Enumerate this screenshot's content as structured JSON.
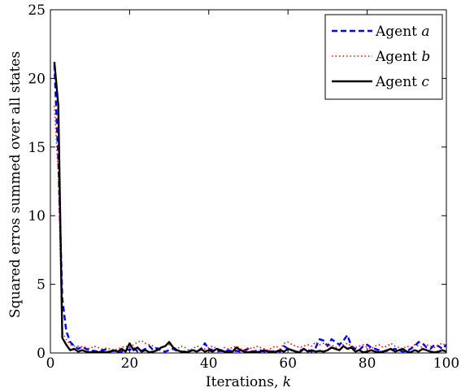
{
  "chart_data": {
    "type": "line",
    "xlabel_text": "Iterations, ",
    "xlabel_var": "k",
    "ylabel": "Squared erros summed over all states",
    "xlim": [
      0,
      100
    ],
    "ylim": [
      0,
      25
    ],
    "xticks": [
      0,
      20,
      40,
      60,
      80,
      100
    ],
    "yticks": [
      0,
      5,
      10,
      15,
      20,
      25
    ],
    "grid": false,
    "legend_position": "top-right",
    "x": [
      1,
      2,
      3,
      4,
      5,
      6,
      7,
      8,
      9,
      10,
      11,
      12,
      13,
      14,
      15,
      16,
      17,
      18,
      19,
      20,
      21,
      22,
      23,
      24,
      25,
      26,
      27,
      28,
      29,
      30,
      31,
      32,
      33,
      34,
      35,
      36,
      37,
      38,
      39,
      40,
      41,
      42,
      43,
      44,
      45,
      46,
      47,
      48,
      49,
      50,
      51,
      52,
      53,
      54,
      55,
      56,
      57,
      58,
      59,
      60,
      61,
      62,
      63,
      64,
      65,
      66,
      67,
      68,
      69,
      70,
      71,
      72,
      73,
      74,
      75,
      76,
      77,
      78,
      79,
      80,
      81,
      82,
      83,
      84,
      85,
      86,
      87,
      88,
      89,
      90,
      91,
      92,
      93,
      94,
      95,
      96,
      97,
      98,
      99,
      100
    ],
    "series": [
      {
        "name": "Agent a",
        "label_prefix": "Agent ",
        "label_var": "a",
        "color": "#0000ff",
        "dash": "7,4",
        "width": 2.4,
        "values": [
          21.0,
          14.0,
          4.0,
          1.6,
          0.8,
          0.5,
          0.3,
          0.45,
          0.3,
          0.2,
          0.15,
          0.1,
          0.2,
          0.25,
          0.1,
          0.15,
          0.1,
          0.1,
          0.3,
          0.2,
          0.4,
          0.1,
          0.15,
          0.3,
          0.5,
          0.2,
          0.35,
          0.15,
          0.1,
          0.2,
          0.3,
          0.15,
          0.1,
          0.1,
          0.15,
          0.2,
          0.1,
          0.25,
          0.7,
          0.3,
          0.2,
          0.1,
          0.15,
          0.1,
          0.2,
          0.1,
          0.15,
          0.1,
          0.2,
          0.3,
          0.1,
          0.15,
          0.2,
          0.1,
          0.15,
          0.1,
          0.2,
          0.1,
          0.5,
          0.3,
          0.2,
          0.1,
          0.15,
          0.3,
          0.2,
          0.1,
          0.4,
          1.0,
          0.9,
          0.5,
          1.0,
          0.8,
          0.6,
          0.9,
          1.3,
          0.5,
          0.3,
          0.2,
          0.5,
          0.6,
          0.4,
          0.3,
          0.2,
          0.1,
          0.15,
          0.2,
          0.3,
          0.2,
          0.1,
          0.15,
          0.3,
          0.5,
          0.8,
          0.7,
          0.4,
          0.3,
          0.6,
          0.5,
          0.3,
          0.6
        ]
      },
      {
        "name": "Agent b",
        "label_prefix": "Agent ",
        "label_var": "b",
        "color": "#ff0000",
        "dash": "1.5,3",
        "width": 1.6,
        "values": [
          18.0,
          13.0,
          1.5,
          1.0,
          0.6,
          0.5,
          0.5,
          0.45,
          0.4,
          0.3,
          0.5,
          0.4,
          0.3,
          0.35,
          0.3,
          0.2,
          0.3,
          0.4,
          0.5,
          0.4,
          0.6,
          0.8,
          0.9,
          0.7,
          0.6,
          0.5,
          0.3,
          0.4,
          0.5,
          0.6,
          0.4,
          0.3,
          0.5,
          0.4,
          0.2,
          0.3,
          0.5,
          0.4,
          0.3,
          0.4,
          0.5,
          0.3,
          0.2,
          0.4,
          0.3,
          0.4,
          0.5,
          0.3,
          0.2,
          0.4,
          0.3,
          0.5,
          0.4,
          0.3,
          0.2,
          0.4,
          0.5,
          0.3,
          0.7,
          0.8,
          0.6,
          0.5,
          0.4,
          0.5,
          0.6,
          0.5,
          0.8,
          0.6,
          0.7,
          0.5,
          0.6,
          0.4,
          0.5,
          0.6,
          0.7,
          0.5,
          0.4,
          0.5,
          0.6,
          0.4,
          0.3,
          0.5,
          0.6,
          0.4,
          0.5,
          0.7,
          0.5,
          0.4,
          0.3,
          0.5,
          0.4,
          0.6,
          0.5,
          0.4,
          0.6,
          0.5,
          0.4,
          0.6,
          0.7,
          0.5
        ]
      },
      {
        "name": "Agent c",
        "label_prefix": "Agent ",
        "label_var": "c",
        "color": "#000000",
        "dash": "",
        "width": 2.4,
        "values": [
          21.2,
          18.0,
          1.1,
          0.6,
          0.2,
          0.3,
          0.1,
          0.2,
          0.1,
          0.05,
          0.1,
          0.05,
          0.1,
          0.05,
          0.1,
          0.2,
          0.1,
          0.3,
          0.1,
          0.7,
          0.2,
          0.4,
          0.1,
          0.2,
          0.05,
          0.1,
          0.2,
          0.4,
          0.5,
          0.8,
          0.4,
          0.2,
          0.1,
          0.05,
          0.1,
          0.2,
          0.1,
          0.3,
          0.1,
          0.2,
          0.1,
          0.3,
          0.2,
          0.1,
          0.05,
          0.1,
          0.4,
          0.2,
          0.1,
          0.05,
          0.1,
          0.05,
          0.1,
          0.2,
          0.1,
          0.05,
          0.1,
          0.2,
          0.1,
          0.3,
          0.2,
          0.1,
          0.05,
          0.3,
          0.1,
          0.2,
          0.1,
          0.15,
          0.1,
          0.2,
          0.4,
          0.3,
          0.2,
          0.5,
          0.3,
          0.4,
          0.1,
          0.2,
          0.05,
          0.1,
          0.2,
          0.1,
          0.05,
          0.1,
          0.2,
          0.3,
          0.1,
          0.2,
          0.3,
          0.1,
          0.05,
          0.2,
          0.1,
          0.3,
          0.2,
          0.1,
          0.05,
          0.1,
          0.2,
          0.1
        ]
      }
    ]
  }
}
